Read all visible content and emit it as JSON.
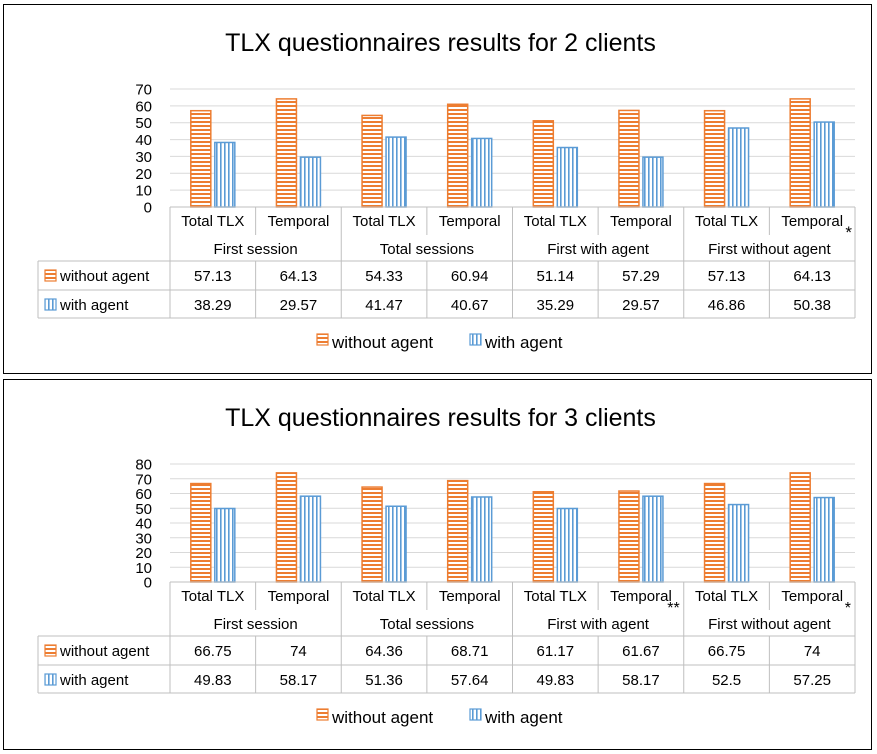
{
  "colors": {
    "without_agent": "#ED7D31",
    "with_agent": "#5B9BD5",
    "grid": "#D9D9D9",
    "table_border": "#BFBFBF"
  },
  "chart_data": [
    {
      "type": "bar",
      "title": "TLX  questionnaires results for 2 clients",
      "ylim": [
        0,
        70
      ],
      "yticks": [
        0,
        10,
        20,
        30,
        40,
        50,
        60,
        70
      ],
      "grid": true,
      "legend_position": "bottom",
      "bar_pattern": {
        "without_agent": "horizontal-stripes",
        "with_agent": "vertical-stripes"
      },
      "categories": [
        "Total TLX",
        "Temporal",
        "Total TLX",
        "Temporal",
        "Total TLX",
        "Temporal",
        "Total TLX",
        "Temporal"
      ],
      "groups": [
        {
          "label": "First session",
          "marker": ""
        },
        {
          "label": "Total sessions",
          "marker": ""
        },
        {
          "label": "First with agent",
          "marker": ""
        },
        {
          "label": "First without agent",
          "marker": "*"
        }
      ],
      "series": [
        {
          "name": "without agent",
          "values": [
            57.13,
            64.13,
            54.33,
            60.94,
            51.14,
            57.29,
            57.13,
            64.13
          ],
          "labels": [
            "57.13",
            "64.13",
            "54.33",
            "60.94",
            "51.14",
            "57.29",
            "57.13",
            "64.13"
          ]
        },
        {
          "name": "with agent",
          "values": [
            38.29,
            29.57,
            41.47,
            40.67,
            35.29,
            29.57,
            46.86,
            50.38
          ],
          "labels": [
            "38.29",
            "29.57",
            "41.47",
            "40.67",
            "35.29",
            "29.57",
            "46.86",
            "50.38"
          ]
        }
      ]
    },
    {
      "type": "bar",
      "title": "TLX  questionnaires results for 3 clients",
      "ylim": [
        0,
        80
      ],
      "yticks": [
        0,
        10,
        20,
        30,
        40,
        50,
        60,
        70,
        80
      ],
      "grid": true,
      "legend_position": "bottom",
      "bar_pattern": {
        "without_agent": "horizontal-stripes",
        "with_agent": "vertical-stripes"
      },
      "categories": [
        "Total TLX",
        "Temporal",
        "Total TLX",
        "Temporal",
        "Total TLX",
        "Temporal",
        "Total TLX",
        "Temporal"
      ],
      "category_markers": [
        "",
        "",
        "",
        "",
        "",
        "**",
        "",
        "*"
      ],
      "groups": [
        {
          "label": "First session",
          "marker": ""
        },
        {
          "label": "Total sessions",
          "marker": ""
        },
        {
          "label": "First with agent",
          "marker": ""
        },
        {
          "label": "First without agent",
          "marker": ""
        }
      ],
      "series": [
        {
          "name": "without agent",
          "values": [
            66.75,
            74,
            64.36,
            68.71,
            61.17,
            61.67,
            66.75,
            74
          ],
          "labels": [
            "66.75",
            "74",
            "64.36",
            "68.71",
            "61.17",
            "61.67",
            "66.75",
            "74"
          ]
        },
        {
          "name": "with agent",
          "values": [
            49.83,
            58.17,
            51.36,
            57.64,
            49.83,
            58.17,
            52.5,
            57.25
          ],
          "labels": [
            "49.83",
            "58.17",
            "51.36",
            "57.64",
            "49.83",
            "58.17",
            "52.5",
            "57.25"
          ]
        }
      ]
    }
  ]
}
